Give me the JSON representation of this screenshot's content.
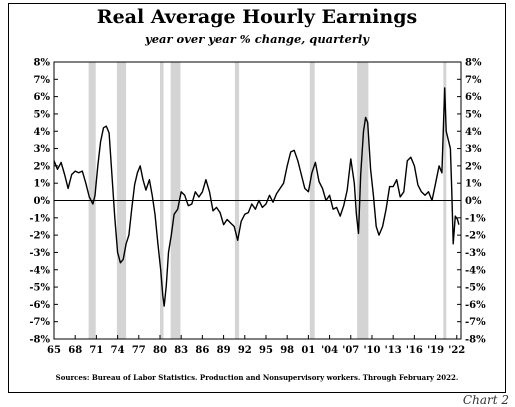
{
  "chart_data": {
    "type": "line",
    "title": "Real Average Hourly Earnings",
    "subtitle": "year over year % change, quarterly",
    "ylim": [
      -8,
      8
    ],
    "y_ticks": [
      8,
      7,
      6,
      5,
      4,
      3,
      2,
      1,
      0,
      -1,
      -2,
      -3,
      -4,
      -5,
      -6,
      -7,
      -8
    ],
    "y_tick_labels": [
      "8%",
      "7%",
      "6%",
      "5%",
      "4%",
      "3%",
      "2%",
      "1%",
      "0%",
      "-1%",
      "-2%",
      "-3%",
      "-4%",
      "-5%",
      "-6%",
      "-7%",
      "-8%"
    ],
    "xlim": [
      1965,
      2022.6
    ],
    "x_ticks": [
      1965,
      1968,
      1971,
      1974,
      1977,
      1980,
      1983,
      1986,
      1989,
      1992,
      1995,
      1998,
      2001,
      2004,
      2007,
      2010,
      2013,
      2016,
      2019,
      2022
    ],
    "x_tick_labels": [
      "65",
      "68",
      "71",
      "74",
      "77",
      "80",
      "83",
      "86",
      "89",
      "92",
      "95",
      "98",
      "01",
      "'04",
      "'07",
      "'10",
      "'13",
      "'16",
      "'19",
      "'22"
    ],
    "grid": false,
    "zero_line": true,
    "recessions": [
      [
        1969.9,
        1970.9
      ],
      [
        1973.9,
        1975.2
      ],
      [
        1980.0,
        1980.5
      ],
      [
        1981.5,
        1982.9
      ],
      [
        1990.6,
        1991.2
      ],
      [
        2001.2,
        2001.9
      ],
      [
        2007.9,
        2009.5
      ],
      [
        2020.1,
        2020.5
      ]
    ],
    "series": [
      {
        "color": "#000000",
        "points": [
          [
            1965.0,
            2.3
          ],
          [
            1965.5,
            1.8
          ],
          [
            1966.0,
            2.2
          ],
          [
            1966.5,
            1.5
          ],
          [
            1967.0,
            0.7
          ],
          [
            1967.5,
            1.5
          ],
          [
            1968.0,
            1.7
          ],
          [
            1968.5,
            1.6
          ],
          [
            1969.0,
            1.7
          ],
          [
            1969.5,
            1.0
          ],
          [
            1970.0,
            0.2
          ],
          [
            1970.5,
            -0.2
          ],
          [
            1970.8,
            0.3
          ],
          [
            1971.2,
            2.0
          ],
          [
            1971.6,
            3.4
          ],
          [
            1972.0,
            4.2
          ],
          [
            1972.4,
            4.3
          ],
          [
            1972.8,
            3.9
          ],
          [
            1973.2,
            1.5
          ],
          [
            1973.6,
            -1.0
          ],
          [
            1974.0,
            -3.0
          ],
          [
            1974.4,
            -3.6
          ],
          [
            1974.8,
            -3.4
          ],
          [
            1975.2,
            -2.5
          ],
          [
            1975.6,
            -2.0
          ],
          [
            1976.0,
            -0.5
          ],
          [
            1976.4,
            0.9
          ],
          [
            1976.8,
            1.6
          ],
          [
            1977.2,
            2.0
          ],
          [
            1977.6,
            1.2
          ],
          [
            1978.0,
            0.6
          ],
          [
            1978.5,
            1.2
          ],
          [
            1978.9,
            0.3
          ],
          [
            1979.3,
            -0.8
          ],
          [
            1979.7,
            -2.5
          ],
          [
            1980.1,
            -4.0
          ],
          [
            1980.4,
            -5.5
          ],
          [
            1980.6,
            -6.1
          ],
          [
            1980.9,
            -4.9
          ],
          [
            1981.2,
            -3.0
          ],
          [
            1981.6,
            -2.0
          ],
          [
            1982.0,
            -0.8
          ],
          [
            1982.5,
            -0.5
          ],
          [
            1983.0,
            0.5
          ],
          [
            1983.5,
            0.3
          ],
          [
            1984.0,
            -0.3
          ],
          [
            1984.5,
            -0.2
          ],
          [
            1985.0,
            0.5
          ],
          [
            1985.5,
            0.2
          ],
          [
            1986.0,
            0.5
          ],
          [
            1986.5,
            1.2
          ],
          [
            1987.0,
            0.5
          ],
          [
            1987.5,
            -0.6
          ],
          [
            1988.0,
            -0.4
          ],
          [
            1988.5,
            -0.7
          ],
          [
            1989.0,
            -1.4
          ],
          [
            1989.5,
            -1.1
          ],
          [
            1990.0,
            -1.3
          ],
          [
            1990.5,
            -1.5
          ],
          [
            1991.0,
            -2.3
          ],
          [
            1991.5,
            -1.2
          ],
          [
            1992.0,
            -0.8
          ],
          [
            1992.5,
            -0.7
          ],
          [
            1993.0,
            -0.2
          ],
          [
            1993.5,
            -0.5
          ],
          [
            1994.0,
            0.0
          ],
          [
            1994.5,
            -0.4
          ],
          [
            1995.0,
            -0.2
          ],
          [
            1995.5,
            0.3
          ],
          [
            1996.0,
            -0.1
          ],
          [
            1996.5,
            0.4
          ],
          [
            1997.0,
            0.7
          ],
          [
            1997.5,
            1.0
          ],
          [
            1998.0,
            2.0
          ],
          [
            1998.5,
            2.8
          ],
          [
            1999.0,
            2.9
          ],
          [
            1999.5,
            2.3
          ],
          [
            2000.0,
            1.5
          ],
          [
            2000.5,
            0.7
          ],
          [
            2001.0,
            0.5
          ],
          [
            2001.5,
            1.6
          ],
          [
            2002.0,
            2.2
          ],
          [
            2002.5,
            1.1
          ],
          [
            2003.0,
            0.7
          ],
          [
            2003.5,
            0.0
          ],
          [
            2004.0,
            0.3
          ],
          [
            2004.5,
            -0.5
          ],
          [
            2005.0,
            -0.4
          ],
          [
            2005.5,
            -0.9
          ],
          [
            2006.0,
            -0.3
          ],
          [
            2006.5,
            0.6
          ],
          [
            2007.0,
            2.4
          ],
          [
            2007.5,
            1.0
          ],
          [
            2007.8,
            -0.8
          ],
          [
            2008.1,
            -1.9
          ],
          [
            2008.4,
            1.5
          ],
          [
            2008.8,
            4.0
          ],
          [
            2009.1,
            4.8
          ],
          [
            2009.4,
            4.5
          ],
          [
            2009.8,
            1.8
          ],
          [
            2010.2,
            0.3
          ],
          [
            2010.6,
            -1.5
          ],
          [
            2011.0,
            -2.0
          ],
          [
            2011.5,
            -1.5
          ],
          [
            2012.0,
            -0.5
          ],
          [
            2012.5,
            0.8
          ],
          [
            2013.0,
            0.8
          ],
          [
            2013.5,
            1.2
          ],
          [
            2014.0,
            0.2
          ],
          [
            2014.5,
            0.5
          ],
          [
            2015.0,
            2.3
          ],
          [
            2015.5,
            2.5
          ],
          [
            2016.0,
            2.0
          ],
          [
            2016.5,
            0.9
          ],
          [
            2017.0,
            0.5
          ],
          [
            2017.5,
            0.3
          ],
          [
            2018.0,
            0.5
          ],
          [
            2018.5,
            0.0
          ],
          [
            2019.0,
            1.0
          ],
          [
            2019.5,
            2.0
          ],
          [
            2019.9,
            1.6
          ],
          [
            2020.3,
            6.5
          ],
          [
            2020.5,
            4.0
          ],
          [
            2020.8,
            3.5
          ],
          [
            2021.1,
            3.0
          ],
          [
            2021.3,
            0.5
          ],
          [
            2021.5,
            -2.5
          ],
          [
            2021.8,
            -0.9
          ],
          [
            2022.1,
            -1.1
          ],
          [
            2022.3,
            -1.4
          ]
        ]
      }
    ],
    "source": "Sources: Bureau of Labor Statistics. Production and Nonsupervisory workers. Through February 2022.",
    "chart_number_label": "Chart 2"
  },
  "style": {
    "line_color": "#000000",
    "recession_color": "#d4d4d4",
    "axis_color": "#000000",
    "background": "#ffffff"
  }
}
